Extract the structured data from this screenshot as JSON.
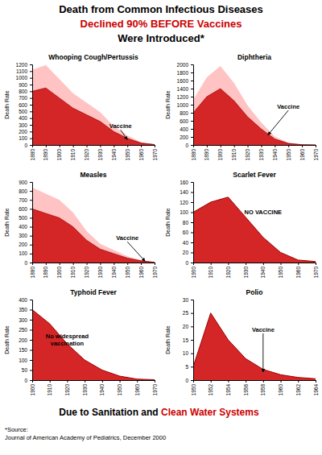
{
  "title": [
    {
      "text": "Death from Common Infectious Diseases",
      "color": "#000000"
    },
    {
      "text": "Declined 90% BEFORE Vaccines",
      "color": "#cc0000"
    },
    {
      "text": "Were Introduced*",
      "color": "#000000"
    }
  ],
  "footer": [
    {
      "text": "Due to Sanitation and ",
      "color": "#000000"
    },
    {
      "text": "Clean Water Systems",
      "color": "#cc0000"
    }
  ],
  "source": [
    "*Source:",
    "Journal of American Academy of Pediatrics, December 2000"
  ],
  "chart_data": [
    {
      "type": "area",
      "title": "Whooping Cough/Pertussis",
      "ylabel": "Death Rate",
      "x": [
        1880,
        1890,
        1900,
        1910,
        1920,
        1930,
        1940,
        1950,
        1960,
        1970
      ],
      "stacked": true,
      "series": [
        {
          "color": "#cc0000",
          "values": [
            800,
            850,
            700,
            550,
            450,
            350,
            200,
            100,
            30,
            5
          ]
        },
        {
          "color": "#ff8888",
          "values": [
            320,
            340,
            280,
            220,
            180,
            140,
            80,
            40,
            12,
            2
          ]
        }
      ],
      "xlim": [
        1880,
        1970
      ],
      "xticks": [
        1880,
        1890,
        1900,
        1910,
        1920,
        1930,
        1940,
        1950,
        1960,
        1970
      ],
      "ylim": [
        0,
        1200
      ],
      "yticks": [
        0,
        100,
        200,
        300,
        400,
        500,
        600,
        700,
        800,
        900,
        1000,
        1100,
        1200
      ],
      "annotations": [
        {
          "text": "Vaccine",
          "x": 1945,
          "y": 250,
          "arrow_to": [
            1950,
            80
          ]
        }
      ]
    },
    {
      "type": "area",
      "title": "Diphtheria",
      "ylabel": "Death Rate",
      "x": [
        1880,
        1890,
        1900,
        1910,
        1920,
        1930,
        1940,
        1950,
        1960,
        1970
      ],
      "stacked": true,
      "series": [
        {
          "color": "#cc0000",
          "values": [
            800,
            1200,
            1400,
            1100,
            700,
            400,
            150,
            40,
            5,
            2
          ]
        },
        {
          "color": "#ff8888",
          "values": [
            320,
            480,
            560,
            440,
            280,
            160,
            60,
            16,
            2,
            0.8
          ]
        }
      ],
      "xlim": [
        1880,
        1970
      ],
      "xticks": [
        1880,
        1890,
        1900,
        1910,
        1920,
        1930,
        1940,
        1950,
        1960,
        1970
      ],
      "ylim": [
        0,
        2000
      ],
      "yticks": [
        0,
        200,
        400,
        600,
        800,
        1000,
        1200,
        1400,
        1600,
        1800,
        2000
      ],
      "annotations": [
        {
          "text": "Vaccine",
          "x": 1950,
          "y": 900,
          "arrow_to": [
            1935,
            250
          ]
        }
      ]
    },
    {
      "type": "area",
      "title": "Measles",
      "ylabel": "Death Rate",
      "x": [
        1880,
        1890,
        1900,
        1910,
        1920,
        1930,
        1940,
        1950,
        1960,
        1970
      ],
      "stacked": true,
      "series": [
        {
          "color": "#cc0000",
          "values": [
            600,
            550,
            500,
            400,
            250,
            150,
            100,
            50,
            20,
            2
          ]
        },
        {
          "color": "#ff8888",
          "values": [
            240,
            220,
            200,
            160,
            100,
            60,
            40,
            20,
            8,
            0.8
          ]
        }
      ],
      "xlim": [
        1880,
        1970
      ],
      "xticks": [
        1880,
        1890,
        1900,
        1910,
        1920,
        1930,
        1940,
        1950,
        1960,
        1970
      ],
      "ylim": [
        0,
        900
      ],
      "yticks": [
        0,
        100,
        200,
        300,
        400,
        500,
        600,
        700,
        800,
        900
      ],
      "annotations": [
        {
          "text": "Vaccine",
          "x": 1950,
          "y": 250,
          "arrow_to": [
            1963,
            15
          ]
        }
      ]
    },
    {
      "type": "area",
      "title": "Scarlet Fever",
      "ylabel": "Death Rate",
      "x": [
        1900,
        1910,
        1920,
        1930,
        1940,
        1950,
        1960,
        1970
      ],
      "series": [
        {
          "color": "#cc0000",
          "values": [
            100,
            120,
            130,
            90,
            50,
            20,
            5,
            2
          ]
        }
      ],
      "xlim": [
        1900,
        1970
      ],
      "xticks": [
        1900,
        1910,
        1920,
        1930,
        1940,
        1950,
        1960,
        1970
      ],
      "ylim": [
        0,
        160
      ],
      "yticks": [
        0,
        20,
        40,
        60,
        80,
        100,
        120,
        140,
        160
      ],
      "annotations": [
        {
          "text": "NO VACCINE",
          "x": 1940,
          "y": 100
        }
      ]
    },
    {
      "type": "area",
      "title": "Typhoid Fever",
      "ylabel": "Death Rate",
      "x": [
        1900,
        1910,
        1920,
        1930,
        1940,
        1950,
        1960,
        1970
      ],
      "series": [
        {
          "color": "#cc0000",
          "values": [
            350,
            280,
            180,
            100,
            50,
            20,
            5,
            2
          ]
        }
      ],
      "xlim": [
        1900,
        1970
      ],
      "xticks": [
        1900,
        1910,
        1920,
        1930,
        1940,
        1950,
        1960,
        1970
      ],
      "ylim": [
        0,
        400
      ],
      "yticks": [
        0,
        50,
        100,
        150,
        200,
        250,
        300,
        350,
        400
      ],
      "annotations": [
        {
          "text": [
            "No widespread",
            "vaccination"
          ],
          "x": 1920,
          "y": 200
        }
      ]
    },
    {
      "type": "area",
      "title": "Polio",
      "ylabel": "Death Rate",
      "x": [
        1950,
        1952,
        1954,
        1956,
        1958,
        1960,
        1962,
        1964
      ],
      "series": [
        {
          "color": "#cc0000",
          "values": [
            5,
            25,
            15,
            8,
            4,
            2,
            1,
            0.5
          ]
        }
      ],
      "xlim": [
        1950,
        1964
      ],
      "xticks": [
        1950,
        1952,
        1954,
        1956,
        1958,
        1960,
        1962,
        1964
      ],
      "ylim": [
        0,
        30
      ],
      "yticks": [
        0,
        5,
        10,
        15,
        20,
        25,
        30
      ],
      "annotations": [
        {
          "text": "Vaccine",
          "x": 1958,
          "y": 18,
          "arrow_to": [
            1958,
            3
          ]
        }
      ]
    }
  ]
}
